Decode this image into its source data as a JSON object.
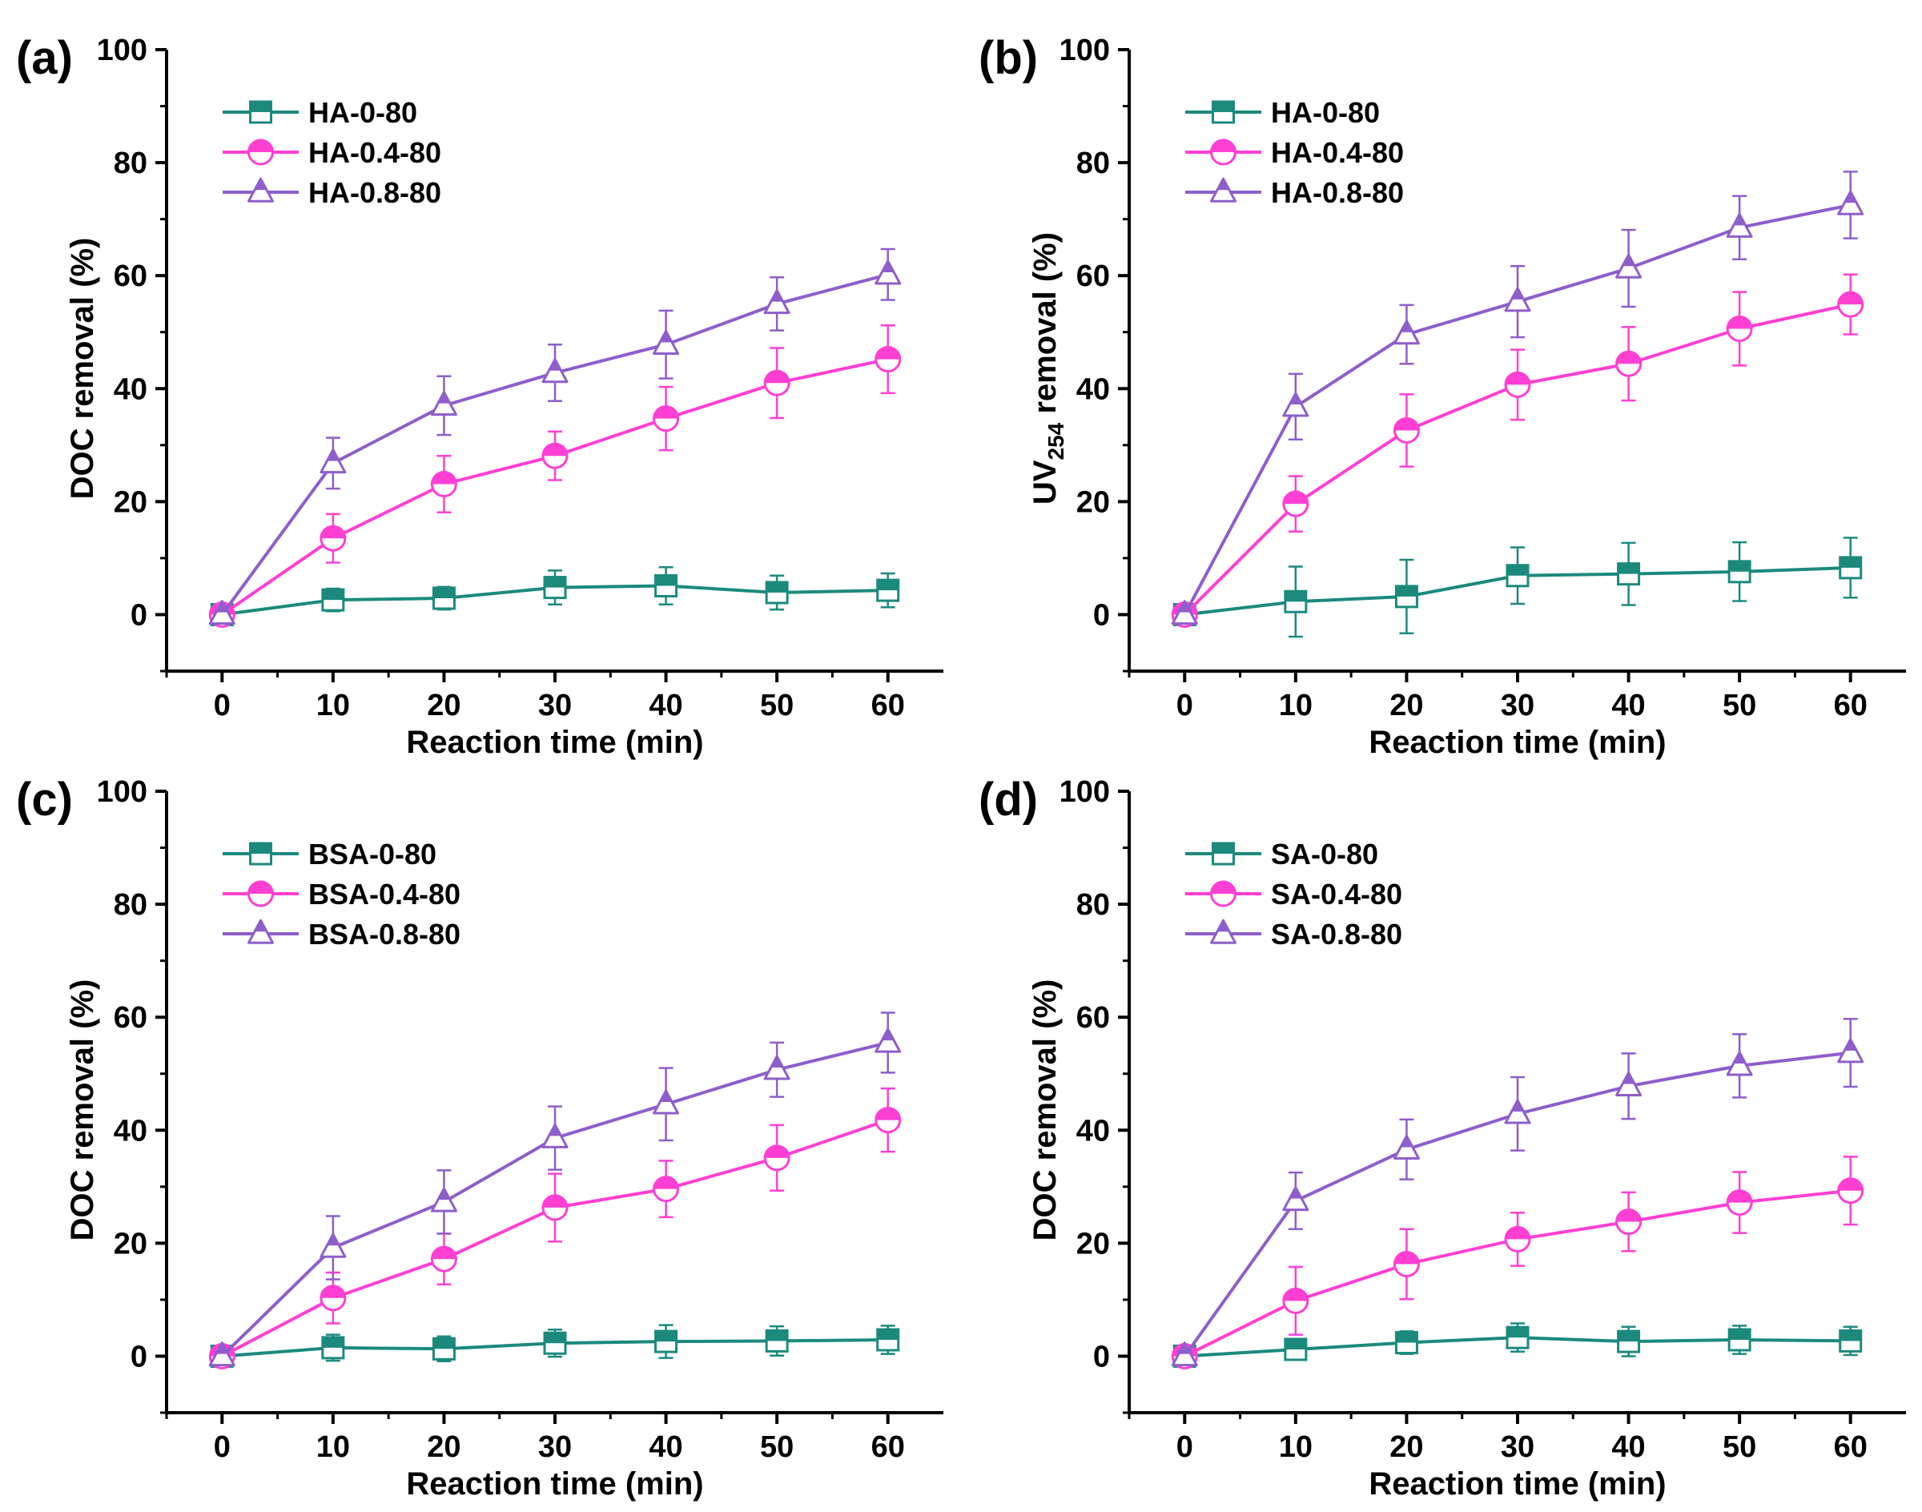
{
  "colors": {
    "series_0": "#1b8a7d",
    "series_1": "#ff3fd3",
    "series_2": "#8e5ecb"
  },
  "chart_data": [
    {
      "type": "line",
      "panel_label": "(a)",
      "xlabel": "Reaction time (min)",
      "ylabel": "DOC removal (%)",
      "ylabel_sub": "",
      "ylabel_rest": "",
      "x": [
        0,
        10,
        20,
        30,
        40,
        50,
        60
      ],
      "xticks": [
        0,
        10,
        20,
        30,
        40,
        50,
        60
      ],
      "xlim": [
        -5,
        65
      ],
      "yticks": [
        0,
        20,
        40,
        60,
        80,
        100
      ],
      "ylim": [
        -10,
        100
      ],
      "legend_position": "top-left",
      "series": [
        {
          "name": "HA-0-80",
          "marker": "square",
          "values": [
            0,
            2.6,
            2.9,
            4.8,
            5.1,
            3.9,
            4.3
          ],
          "errors": [
            0.8,
            2.0,
            2.0,
            3.0,
            3.3,
            3.0,
            3.0
          ]
        },
        {
          "name": "HA-0.4-80",
          "marker": "circle",
          "values": [
            0,
            13.5,
            23.1,
            28.1,
            34.7,
            41.0,
            45.2
          ],
          "errors": [
            0.8,
            4.3,
            5.0,
            4.3,
            5.6,
            6.2,
            6.0
          ]
        },
        {
          "name": "HA-0.8-80",
          "marker": "triangle",
          "values": [
            0,
            26.8,
            37.0,
            42.8,
            47.8,
            55.0,
            60.2
          ],
          "errors": [
            0.8,
            4.5,
            5.2,
            5.0,
            6.0,
            4.7,
            4.5
          ]
        }
      ]
    },
    {
      "type": "line",
      "panel_label": "(b)",
      "xlabel": "Reaction time (min)",
      "ylabel": "UV",
      "ylabel_sub": "254",
      "ylabel_rest": " removal (%)",
      "x": [
        0,
        10,
        20,
        30,
        40,
        50,
        60
      ],
      "xticks": [
        0,
        10,
        20,
        30,
        40,
        50,
        60
      ],
      "xlim": [
        -5,
        65
      ],
      "yticks": [
        0,
        20,
        40,
        60,
        80,
        100
      ],
      "ylim": [
        -10,
        100
      ],
      "legend_position": "top-left",
      "series": [
        {
          "name": "HA-0-80",
          "marker": "square",
          "values": [
            0,
            2.3,
            3.2,
            6.9,
            7.2,
            7.6,
            8.3
          ],
          "errors": [
            0.8,
            6.2,
            6.5,
            5.0,
            5.5,
            5.2,
            5.3
          ]
        },
        {
          "name": "HA-0.4-80",
          "marker": "circle",
          "values": [
            0,
            19.6,
            32.6,
            40.7,
            44.4,
            50.6,
            54.9
          ],
          "errors": [
            0.8,
            4.9,
            6.4,
            6.2,
            6.5,
            6.5,
            5.3
          ]
        },
        {
          "name": "HA-0.8-80",
          "marker": "triangle",
          "values": [
            0,
            36.8,
            49.6,
            55.4,
            61.3,
            68.5,
            72.5
          ],
          "errors": [
            0.8,
            5.8,
            5.2,
            6.3,
            6.8,
            5.6,
            5.9
          ]
        }
      ]
    },
    {
      "type": "line",
      "panel_label": "(c)",
      "xlabel": "Reaction time (min)",
      "ylabel": "DOC removal (%)",
      "ylabel_sub": "",
      "ylabel_rest": "",
      "x": [
        0,
        10,
        20,
        30,
        40,
        50,
        60
      ],
      "xticks": [
        0,
        10,
        20,
        30,
        40,
        50,
        60
      ],
      "xlim": [
        -5,
        65
      ],
      "yticks": [
        0,
        20,
        40,
        60,
        80,
        100
      ],
      "ylim": [
        -10,
        100
      ],
      "legend_position": "top-left",
      "series": [
        {
          "name": "BSA-0-80",
          "marker": "square",
          "values": [
            0,
            1.5,
            1.3,
            2.3,
            2.6,
            2.7,
            2.9
          ],
          "errors": [
            0.8,
            2.3,
            2.2,
            2.4,
            2.9,
            2.6,
            2.5
          ]
        },
        {
          "name": "BSA-0.4-80",
          "marker": "circle",
          "values": [
            0,
            10.3,
            17.2,
            26.3,
            29.6,
            35.1,
            41.8
          ],
          "errors": [
            0.8,
            4.5,
            4.5,
            6.0,
            5.0,
            5.8,
            5.6
          ]
        },
        {
          "name": "BSA-0.8-80",
          "marker": "triangle",
          "values": [
            0,
            19.2,
            27.3,
            38.6,
            44.6,
            50.7,
            55.5
          ],
          "errors": [
            0.8,
            5.6,
            5.6,
            5.6,
            6.4,
            4.8,
            5.3
          ]
        }
      ]
    },
    {
      "type": "line",
      "panel_label": "(d)",
      "xlabel": "Reaction time (min)",
      "ylabel": "DOC removal (%)",
      "ylabel_sub": "",
      "ylabel_rest": "",
      "x": [
        0,
        10,
        20,
        30,
        40,
        50,
        60
      ],
      "xticks": [
        0,
        10,
        20,
        30,
        40,
        50,
        60
      ],
      "xlim": [
        -5,
        65
      ],
      "yticks": [
        0,
        20,
        40,
        60,
        80,
        100
      ],
      "ylim": [
        -10,
        100
      ],
      "legend_position": "top-left",
      "series": [
        {
          "name": "SA-0-80",
          "marker": "square",
          "values": [
            0,
            1.2,
            2.4,
            3.3,
            2.6,
            2.9,
            2.7
          ],
          "errors": [
            0.8,
            1.8,
            2.0,
            2.5,
            2.6,
            2.5,
            2.5
          ]
        },
        {
          "name": "SA-0.4-80",
          "marker": "circle",
          "values": [
            0,
            9.8,
            16.3,
            20.7,
            23.8,
            27.2,
            29.3
          ],
          "errors": [
            0.8,
            6.0,
            6.2,
            4.7,
            5.2,
            5.4,
            6.0
          ]
        },
        {
          "name": "SA-0.8-80",
          "marker": "triangle",
          "values": [
            0,
            27.5,
            36.6,
            42.9,
            47.8,
            51.4,
            53.7
          ],
          "errors": [
            0.8,
            5.0,
            5.3,
            6.5,
            5.8,
            5.6,
            6.0
          ]
        }
      ]
    }
  ]
}
